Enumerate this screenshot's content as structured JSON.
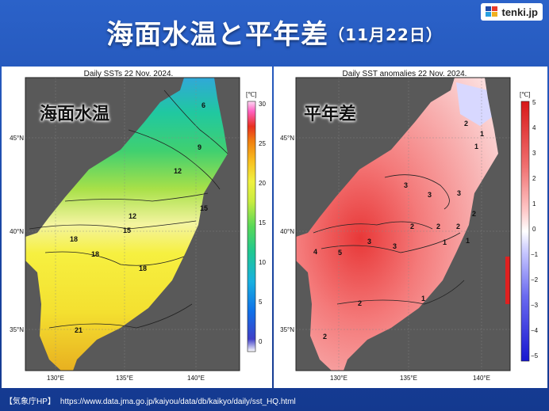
{
  "header": {
    "title": "海面水温と平年差",
    "date": "（11月22日）"
  },
  "logo": {
    "text": "tenki.jp",
    "icon": "tenki-logo-icon"
  },
  "panels": {
    "sst": {
      "caption": "Daily SSTs 22 Nov. 2024.",
      "overlay_label": "海面水温",
      "unit": "[℃]",
      "colorbar_ticks": [
        "30",
        "25",
        "20",
        "15",
        "10",
        "5",
        "0"
      ],
      "lat_labels": [
        "45°N",
        "40°N",
        "35°N"
      ],
      "lon_labels": [
        "130°E",
        "135°E",
        "140°E"
      ],
      "contour_labels": [
        "6",
        "9",
        "12",
        "12",
        "15",
        "15",
        "18",
        "18",
        "18",
        "21"
      ]
    },
    "anomaly": {
      "caption": "Daily SST anomalies 22 Nov. 2024.",
      "overlay_label": "平年差",
      "unit": "[℃]",
      "colorbar_ticks": [
        "5",
        "4",
        "3",
        "2",
        "1",
        "0",
        "−1",
        "−2",
        "−3",
        "−4",
        "−5"
      ],
      "lat_labels": [
        "45°N",
        "40°N",
        "35°N"
      ],
      "lon_labels": [
        "130°E",
        "135°E",
        "140°E"
      ],
      "contour_labels": [
        "2",
        "1",
        "1",
        "3",
        "3",
        "3",
        "2",
        "2",
        "2",
        "2",
        "1",
        "1",
        "3",
        "3",
        "4",
        "5",
        "1",
        "2",
        "2"
      ]
    }
  },
  "colors": {
    "land": "#595959",
    "background_blue": "#1f4aa8",
    "sst_scale": [
      "#c8c8ff",
      "#3030c8",
      "#1070e8",
      "#18b0e0",
      "#20c890",
      "#58d858",
      "#b8e840",
      "#f0f040",
      "#f8c020",
      "#f08010",
      "#e83020",
      "#ff60c0",
      "#ffc8f0"
    ],
    "anomaly_scale": [
      "#1818d0",
      "#6a6af0",
      "#b0b0ff",
      "#ffffff",
      "#ffc8c8",
      "#f07070",
      "#d81818"
    ]
  },
  "footer": {
    "source": "【気象庁HP】",
    "url": "https://www.data.jma.go.jp/kaiyou/data/db/kaikyo/daily/sst_HQ.html"
  }
}
